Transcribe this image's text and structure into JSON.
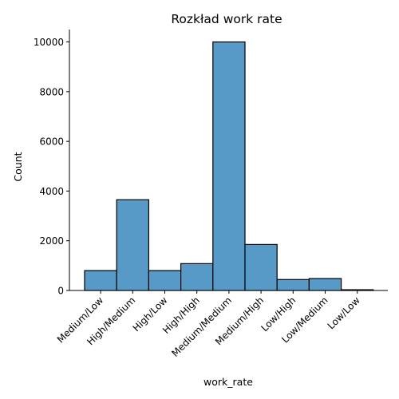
{
  "chart_data": {
    "type": "bar",
    "title": "Rozkład work rate",
    "xlabel": "work_rate",
    "ylabel": "Count",
    "categories": [
      "Medium/Low",
      "High/Medium",
      "High/Low",
      "High/High",
      "Medium/Medium",
      "Medium/High",
      "Low/High",
      "Low/Medium",
      "Low/Low"
    ],
    "values": [
      800,
      3650,
      800,
      1080,
      10000,
      1850,
      440,
      480,
      30
    ],
    "ylim": [
      0,
      10500
    ],
    "yticks": [
      0,
      2000,
      4000,
      6000,
      8000,
      10000
    ],
    "grid": false,
    "bar_color": "#5799c7",
    "edge_color": "#000000"
  }
}
